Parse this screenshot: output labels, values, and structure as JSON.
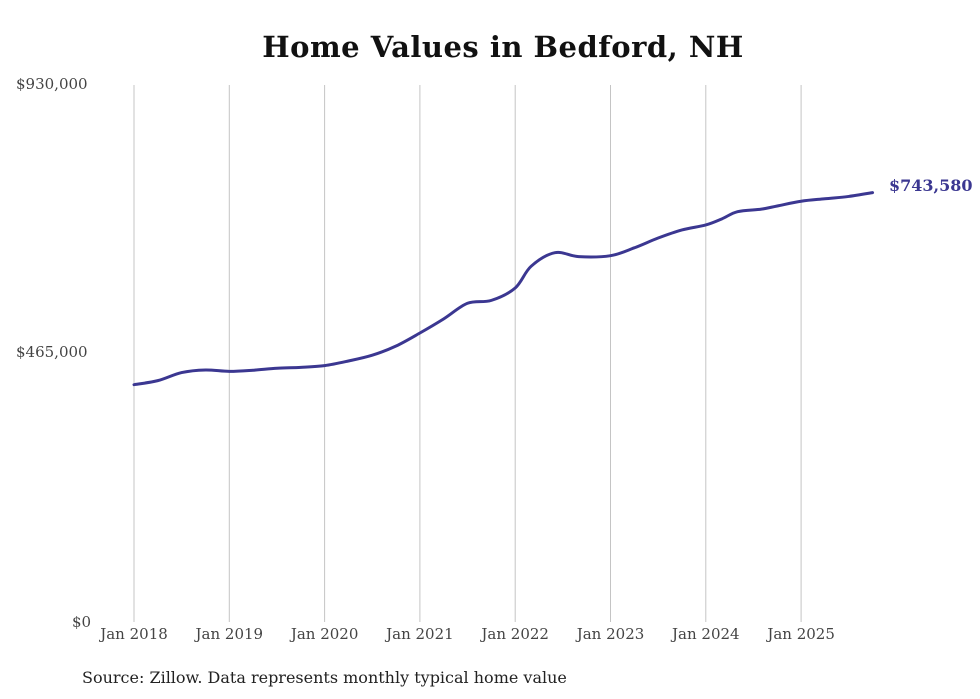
{
  "chart_data": {
    "type": "line",
    "title": "Home Values in Bedford, NH",
    "xlabel": "",
    "ylabel": "",
    "ylim": [
      0,
      930000
    ],
    "y_ticks": [
      "$930,000",
      "$465,000",
      "$0"
    ],
    "x_ticks": [
      "Jan 2018",
      "Jan 2019",
      "Jan 2020",
      "Jan 2021",
      "Jan 2022",
      "Jan 2023",
      "Jan 2024",
      "Jan 2025"
    ],
    "grid": "vertical",
    "legend": "none",
    "series": [
      {
        "name": "Typical home value",
        "color": "#3b3791",
        "x": [
          "2018-01",
          "2018-04",
          "2018-07",
          "2018-10",
          "2019-01",
          "2019-04",
          "2019-07",
          "2019-10",
          "2020-01",
          "2020-04",
          "2020-07",
          "2020-10",
          "2021-01",
          "2021-04",
          "2021-07",
          "2021-10",
          "2022-01",
          "2022-03",
          "2022-06",
          "2022-09",
          "2023-01",
          "2023-04",
          "2023-07",
          "2023-10",
          "2024-01",
          "2024-03",
          "2024-05",
          "2024-08",
          "2024-10",
          "2025-01",
          "2025-04",
          "2025-07",
          "2025-10"
        ],
        "values": [
          411000,
          418000,
          432000,
          436500,
          434000,
          436000,
          439500,
          441000,
          444000,
          452000,
          462000,
          478000,
          500500,
          525000,
          552000,
          557000,
          578500,
          616000,
          639600,
          632700,
          634400,
          648000,
          665000,
          679000,
          687600,
          698000,
          710600,
          715000,
          720500,
          728700,
          733000,
          737000,
          743580
        ]
      }
    ],
    "end_label": "$743,580"
  },
  "source_note": "Source: Zillow. Data represents monthly typical home value"
}
